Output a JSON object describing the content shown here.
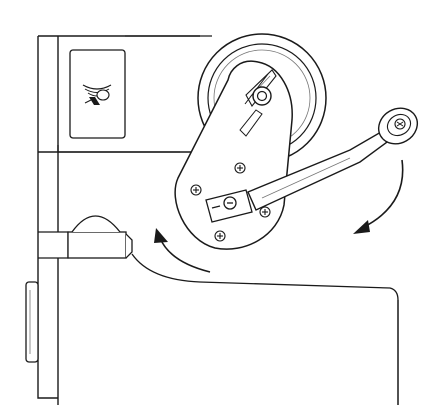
{
  "diagram": {
    "colors": {
      "line": "#1a1a1a",
      "light_line": "#777777",
      "fill": "#ffffff",
      "shade": "#f2f2f2"
    },
    "icons": {
      "logo": "sewing-machine-logo-icon",
      "rotation_arrows": "curved-arrow-icon"
    }
  }
}
